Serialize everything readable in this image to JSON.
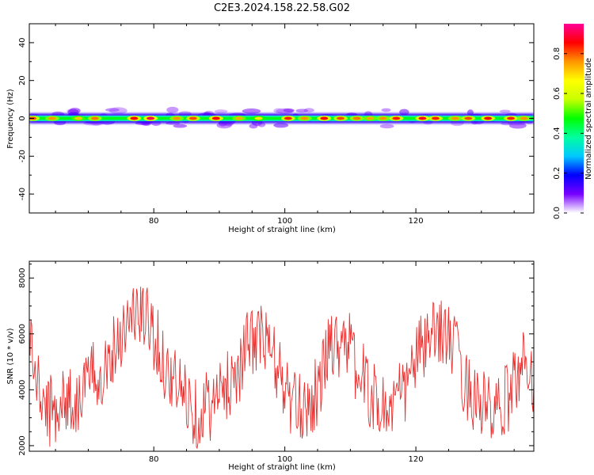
{
  "figure": {
    "title": "C2E3.2024.158.22.58.G02"
  },
  "chart_data": [
    {
      "type": "heatmap",
      "xlabel": "Height of straight line (km)",
      "ylabel": "Frequency (Hz)",
      "xlim": [
        61,
        138
      ],
      "ylim": [
        -50,
        50
      ],
      "xticks": [
        80,
        100,
        120
      ],
      "yticks": [
        -40,
        -20,
        0,
        20,
        40
      ],
      "colorbar": {
        "label": "Normalized spectral amplitude",
        "range": [
          0,
          0.95
        ],
        "ticks": [
          "0.0",
          "0.2",
          "0.4",
          "0.6",
          "0.8"
        ],
        "colormap": [
          "#ffffff",
          "#7700ff",
          "#0000ff",
          "#00c8ff",
          "#00ffa0",
          "#00ff00",
          "#c8ff00",
          "#ffff00",
          "#ff9600",
          "#ff0000",
          "#ff0096"
        ]
      },
      "band": {
        "center_frequency_hz": 0,
        "halfwidth_core_hz": 1.5,
        "halfwidth_outer_hz": 4.5,
        "peak_heights_km": [
          61.5,
          64.5,
          68.5,
          71,
          77,
          79.5,
          83.5,
          86,
          89.5,
          93,
          96,
          100.5,
          103,
          106,
          108.5,
          111,
          113,
          115,
          117,
          121,
          123,
          126,
          128,
          131,
          134.5,
          136.5
        ],
        "peak_amplitudes": [
          0.85,
          0.8,
          0.75,
          0.82,
          0.9,
          0.95,
          0.8,
          0.85,
          0.9,
          0.78,
          0.72,
          0.88,
          0.8,
          0.9,
          0.85,
          0.82,
          0.78,
          0.8,
          0.88,
          0.92,
          0.88,
          0.8,
          0.85,
          0.9,
          0.88,
          0.8
        ]
      }
    },
    {
      "type": "line",
      "xlabel": "Height of straight line (km)",
      "ylabel": "SNR (10 * v/v)",
      "xlim": [
        61,
        138
      ],
      "ylim": [
        1800,
        8600
      ],
      "xticks": [
        80,
        100,
        120
      ],
      "yticks": [
        2000,
        4000,
        6000,
        8000
      ],
      "series": [
        {
          "color": "#e8302f",
          "x": [
            61,
            62,
            63,
            64,
            65,
            66,
            67,
            68,
            69,
            70,
            71,
            72,
            73,
            74,
            75,
            76,
            77,
            78,
            79,
            80,
            81,
            82,
            83,
            84,
            85,
            86,
            87,
            88,
            89,
            90,
            91,
            92,
            93,
            94,
            95,
            96,
            97,
            98,
            99,
            100,
            101,
            102,
            103,
            104,
            105,
            106,
            107,
            108,
            109,
            110,
            111,
            112,
            113,
            114,
            115,
            116,
            117,
            118,
            119,
            120,
            121,
            122,
            123,
            124,
            125,
            126,
            127,
            128,
            129,
            130,
            131,
            132,
            133,
            134,
            135,
            136,
            137,
            138
          ],
          "values": [
            6200,
            4300,
            3600,
            3200,
            3400,
            3500,
            3800,
            3400,
            4000,
            4300,
            4500,
            4700,
            5000,
            5600,
            6100,
            6400,
            6800,
            6600,
            6500,
            6000,
            5300,
            4700,
            4300,
            4000,
            3800,
            3300,
            3100,
            3500,
            3400,
            3700,
            4100,
            4500,
            4800,
            5400,
            5800,
            5900,
            5700,
            5300,
            4700,
            4100,
            3500,
            3200,
            3500,
            3600,
            4000,
            4700,
            6000,
            5500,
            6200,
            5400,
            4600,
            4400,
            3900,
            3500,
            3400,
            3300,
            3700,
            3800,
            4400,
            5200,
            5500,
            5700,
            5900,
            6300,
            5800,
            5400,
            4600,
            4000,
            3800,
            3500,
            3300,
            3000,
            3300,
            3700,
            4300,
            4800,
            5100,
            4300
          ]
        }
      ]
    }
  ]
}
